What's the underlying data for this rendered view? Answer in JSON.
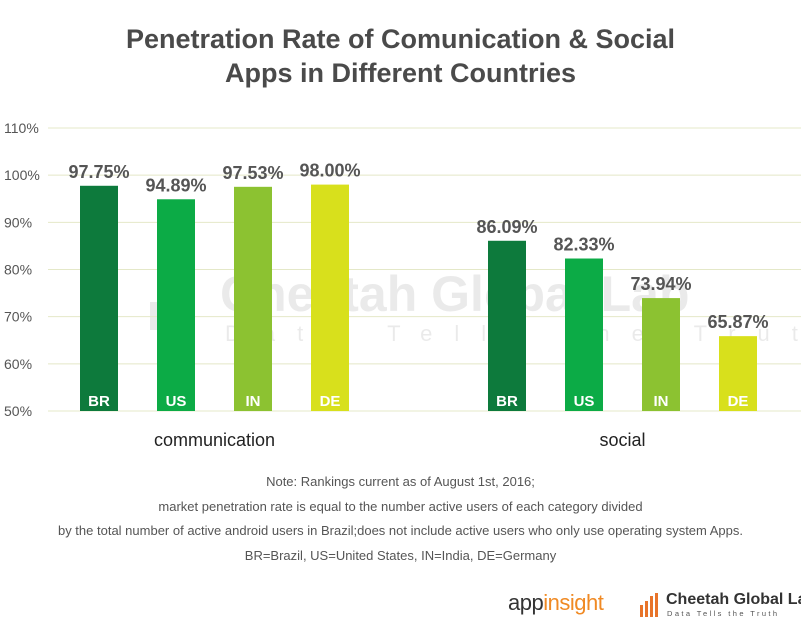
{
  "chart_data": {
    "type": "bar",
    "title": [
      "Penetration Rate of Comunication & Social",
      "Apps in Different Countries"
    ],
    "ylim": [
      50,
      110
    ],
    "yticks": [
      "110%",
      "100%",
      "90%",
      "80%",
      "70%",
      "60%",
      "50%"
    ],
    "ytick_values": [
      110,
      100,
      90,
      80,
      70,
      60,
      50
    ],
    "groups": [
      {
        "name": "communication",
        "bars": [
          {
            "country": "BR",
            "value": 97.75,
            "label": "97.75%",
            "color": "#0d7a3c"
          },
          {
            "country": "US",
            "value": 94.89,
            "label": "94.89%",
            "color": "#0cab46"
          },
          {
            "country": "IN",
            "value": 97.53,
            "label": "97.53%",
            "color": "#8cc231"
          },
          {
            "country": "DE",
            "value": 98.0,
            "label": "98.00%",
            "color": "#d8e01c"
          }
        ]
      },
      {
        "name": "social",
        "bars": [
          {
            "country": "BR",
            "value": 86.09,
            "label": "86.09%",
            "color": "#0d7a3c"
          },
          {
            "country": "US",
            "value": 82.33,
            "label": "82.33%",
            "color": "#0cab46"
          },
          {
            "country": "IN",
            "value": 73.94,
            "label": "73.94%",
            "color": "#8cc231"
          },
          {
            "country": "DE",
            "value": 65.87,
            "label": "65.87%",
            "color": "#d8e01c"
          }
        ]
      }
    ]
  },
  "watermark": {
    "name": "Cheetah Global Lab",
    "tagline": "Data Tells the Truth"
  },
  "notes": [
    "Note: Rankings current as of August 1st, 2016;",
    "market penetration rate is equal to the number active users of each category divided",
    "by the total number of active android users in Brazil;does not include active users who only use operating system Apps.",
    "BR=Brazil, US=United States, IN=India, DE=Germany"
  ],
  "logos": {
    "appinsight": {
      "part1": "app",
      "part2": "insight"
    },
    "cheetah": {
      "name": "Cheetah Global Lab",
      "tagline": "Data Tells the Truth"
    }
  },
  "colors": {
    "grid": "#e4e8c8",
    "tick_text": "#555555",
    "value_text": "#555555",
    "bar_label": "#ffffff"
  }
}
